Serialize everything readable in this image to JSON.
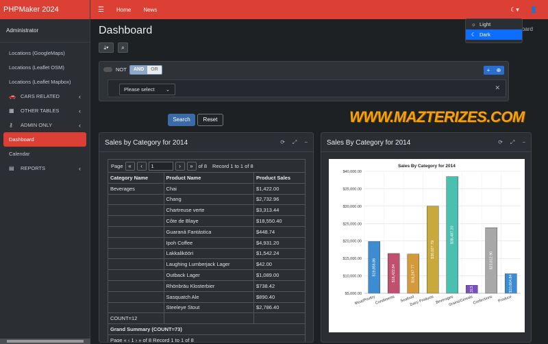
{
  "app": {
    "brand": "PHPMaker 2024",
    "user": "Administrator"
  },
  "sidebar": {
    "items": [
      {
        "label": "Locations (GoogleMaps)",
        "icon": "",
        "chevron": ""
      },
      {
        "label": "Locations (Leaflet OSM)",
        "icon": "",
        "chevron": ""
      },
      {
        "label": "Locations (Leaflet Mapbox)",
        "icon": "",
        "chevron": ""
      },
      {
        "label": "CARS RELATED",
        "icon": "car-icon",
        "chevron": "‹"
      },
      {
        "label": "OTHER TABLES",
        "icon": "table-icon",
        "chevron": "‹"
      },
      {
        "label": "ADMIN ONLY",
        "icon": "key-icon",
        "chevron": "‹"
      },
      {
        "label": "Dashboard",
        "icon": "",
        "chevron": "",
        "active": true
      },
      {
        "label": "Calendar",
        "icon": "",
        "chevron": ""
      },
      {
        "label": "REPORTS",
        "icon": "file-icon",
        "chevron": "‹"
      }
    ]
  },
  "topbar": {
    "menu_icon": "☰",
    "links": [
      "Home",
      "News"
    ],
    "theme_icon": "☾▾",
    "user_icon": "👤"
  },
  "page": {
    "title": "Dashboard",
    "breadcrumb": "oard"
  },
  "theme_menu": {
    "options": [
      {
        "label": "Light",
        "icon": "sun-icon"
      },
      {
        "label": "Dark",
        "icon": "moon-icon",
        "selected": true
      }
    ]
  },
  "filter": {
    "not_label": "NOT",
    "and_label": "AND",
    "or_label": "OR",
    "select_placeholder": "Please select",
    "search_label": "Search",
    "reset_label": "Reset"
  },
  "watermark": "WWW.MAZTERIZES.COM",
  "table_card": {
    "title": "Sales by Category for 2014",
    "pager": {
      "page_label": "Page",
      "page_value": "1",
      "of_label": "of 8",
      "record_info": "Record 1 to 1 of 8"
    },
    "columns": [
      "Category Name",
      "Product Name",
      "Product Sales"
    ],
    "rows": [
      [
        "Beverages",
        "Chai",
        "$1,422.00"
      ],
      [
        "",
        "Chang",
        "$2,732.96"
      ],
      [
        "",
        "Chartreuse verte",
        "$3,313.44"
      ],
      [
        "",
        "Côte de Blaye",
        "$18,550.40"
      ],
      [
        "",
        "Guaraná Fantástica",
        "$448.74"
      ],
      [
        "",
        "Ipoh Coffee",
        "$4,931.20"
      ],
      [
        "",
        "Lakkalikööri",
        "$1,542.24"
      ],
      [
        "",
        "Laughing Lumberjack Lager",
        "$42.00"
      ],
      [
        "",
        "Outback Lager",
        "$1,089.00"
      ],
      [
        "",
        "Rhönbräu Klosterbier",
        "$738.42"
      ],
      [
        "",
        "Sasquatch Ale",
        "$890.40"
      ],
      [
        "",
        "Steeleye Stout",
        "$2,786.40"
      ]
    ],
    "count_label": "COUNT=12",
    "grand_label": "Grand Summary (COUNT=73)",
    "pager2": {
      "page_label": "Page",
      "page_value": "1",
      "of_label": "of 8",
      "record_info": "Record 1 to 1 of 8"
    }
  },
  "chart_card": {
    "title": "Sales By Category for 2014"
  },
  "chart_data": {
    "type": "bar",
    "title": "Sales By Category for 2014",
    "xlabel": "",
    "ylabel": "",
    "categories": [
      "Meat/Poultry",
      "Condiments",
      "Seafood",
      "Dairy Products",
      "Beverages",
      "Grains/Cereals",
      "Confections",
      "Produce"
    ],
    "values": [
      19856.86,
      16422.84,
      16247.77,
      30027.79,
      38487.2,
      7313.92,
      23812.9,
      10604.84
    ],
    "value_labels": [
      "$19,856.86",
      "$16,422.84",
      "$16,247.77",
      "$30,027.79",
      "$38,487.20",
      "$7,313.92",
      "$23,812.90",
      "$10,604.84"
    ],
    "colors": [
      "#3d8bd0",
      "#c0506e",
      "#d49a3a",
      "#c9a83c",
      "#4bbfb0",
      "#7a4fc0",
      "#a8a8a8",
      "#3d8bd0"
    ],
    "y_ticks": [
      "$5,000.00",
      "$10,000.00",
      "$15,000.00",
      "$20,000.00",
      "$25,000.00",
      "$30,000.00",
      "$35,000.00",
      "$40,000.00"
    ],
    "ylim": [
      5000,
      40000
    ],
    "grid": true
  }
}
